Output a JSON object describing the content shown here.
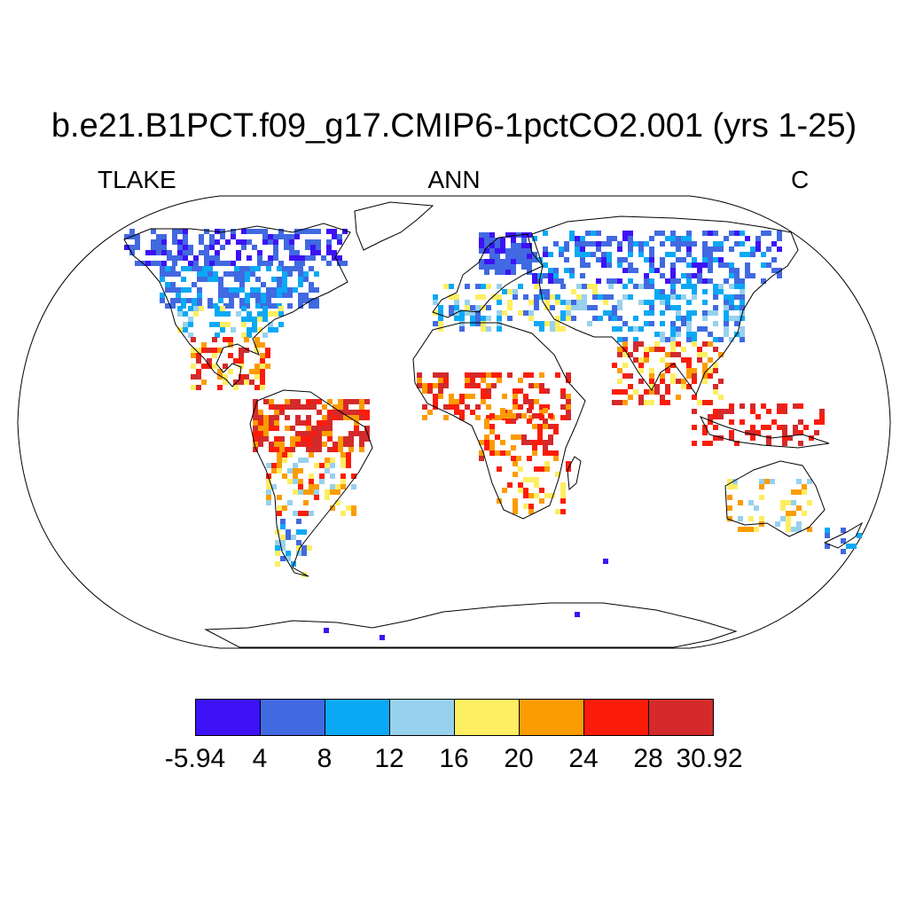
{
  "title": "b.e21.B1PCT.f09_g17.CMIP6-1pctCO2.001 (yrs 1-25)",
  "variable": "TLAKE",
  "season": "ANN",
  "units": "C",
  "colorbar": {
    "colors": [
      "#3d12f5",
      "#4169e1",
      "#0aa9f5",
      "#97d1ed",
      "#fdee62",
      "#fb9c02",
      "#fc1c0a",
      "#d42a2c"
    ],
    "labels": [
      "-5.94",
      "4",
      "8",
      "12",
      "16",
      "20",
      "24",
      "28",
      "30.92"
    ]
  },
  "map": {
    "projection": "Robinson",
    "land_color": "#ffffff",
    "coastline_color": "#000000"
  }
}
